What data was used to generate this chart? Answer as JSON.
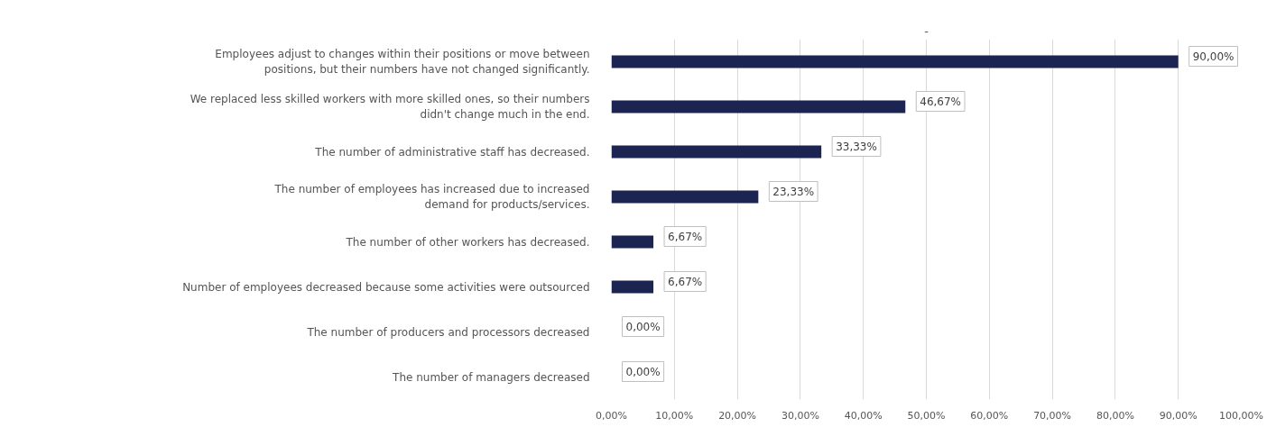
{
  "chart_data": {
    "type": "bar",
    "orientation": "horizontal",
    "title": "-",
    "categories": [
      "Employees adjust to changes within their positions or move between\npositions, but their numbers have not changed significantly.",
      "We replaced less skilled workers with more skilled ones, so their numbers\ndidn't change much in the end.",
      "The number of administrative staff has decreased.",
      "The number of employees has increased due to increased\ndemand for products/services.",
      "The number of other workers has decreased.",
      "Number of employees decreased because some activities were outsourced",
      "The number of producers and processors decreased",
      "The number of managers decreased"
    ],
    "values": [
      90,
      46.67,
      33.33,
      23.33,
      6.67,
      6.67,
      0,
      0
    ],
    "value_labels": [
      "90,00%",
      "46,67%",
      "33,33%",
      "23,33%",
      "6,67%",
      "6,67%",
      "0,00%",
      "0,00%"
    ],
    "color": "#1c2452",
    "xlim": [
      0,
      100
    ],
    "xticks": [
      {
        "value": 0,
        "label": "0,00%"
      },
      {
        "value": 10,
        "label": "10,00%"
      },
      {
        "value": 20,
        "label": "20,00%"
      },
      {
        "value": 30,
        "label": "30,00%"
      },
      {
        "value": 40,
        "label": "40,00%"
      },
      {
        "value": 50,
        "label": "50,00%"
      },
      {
        "value": 60,
        "label": "60,00%"
      },
      {
        "value": 70,
        "label": "70,00%"
      },
      {
        "value": 80,
        "label": "80,00%"
      },
      {
        "value": 90,
        "label": "90,00%"
      },
      {
        "value": 100,
        "label": "100,00%"
      }
    ],
    "grid": "x"
  }
}
